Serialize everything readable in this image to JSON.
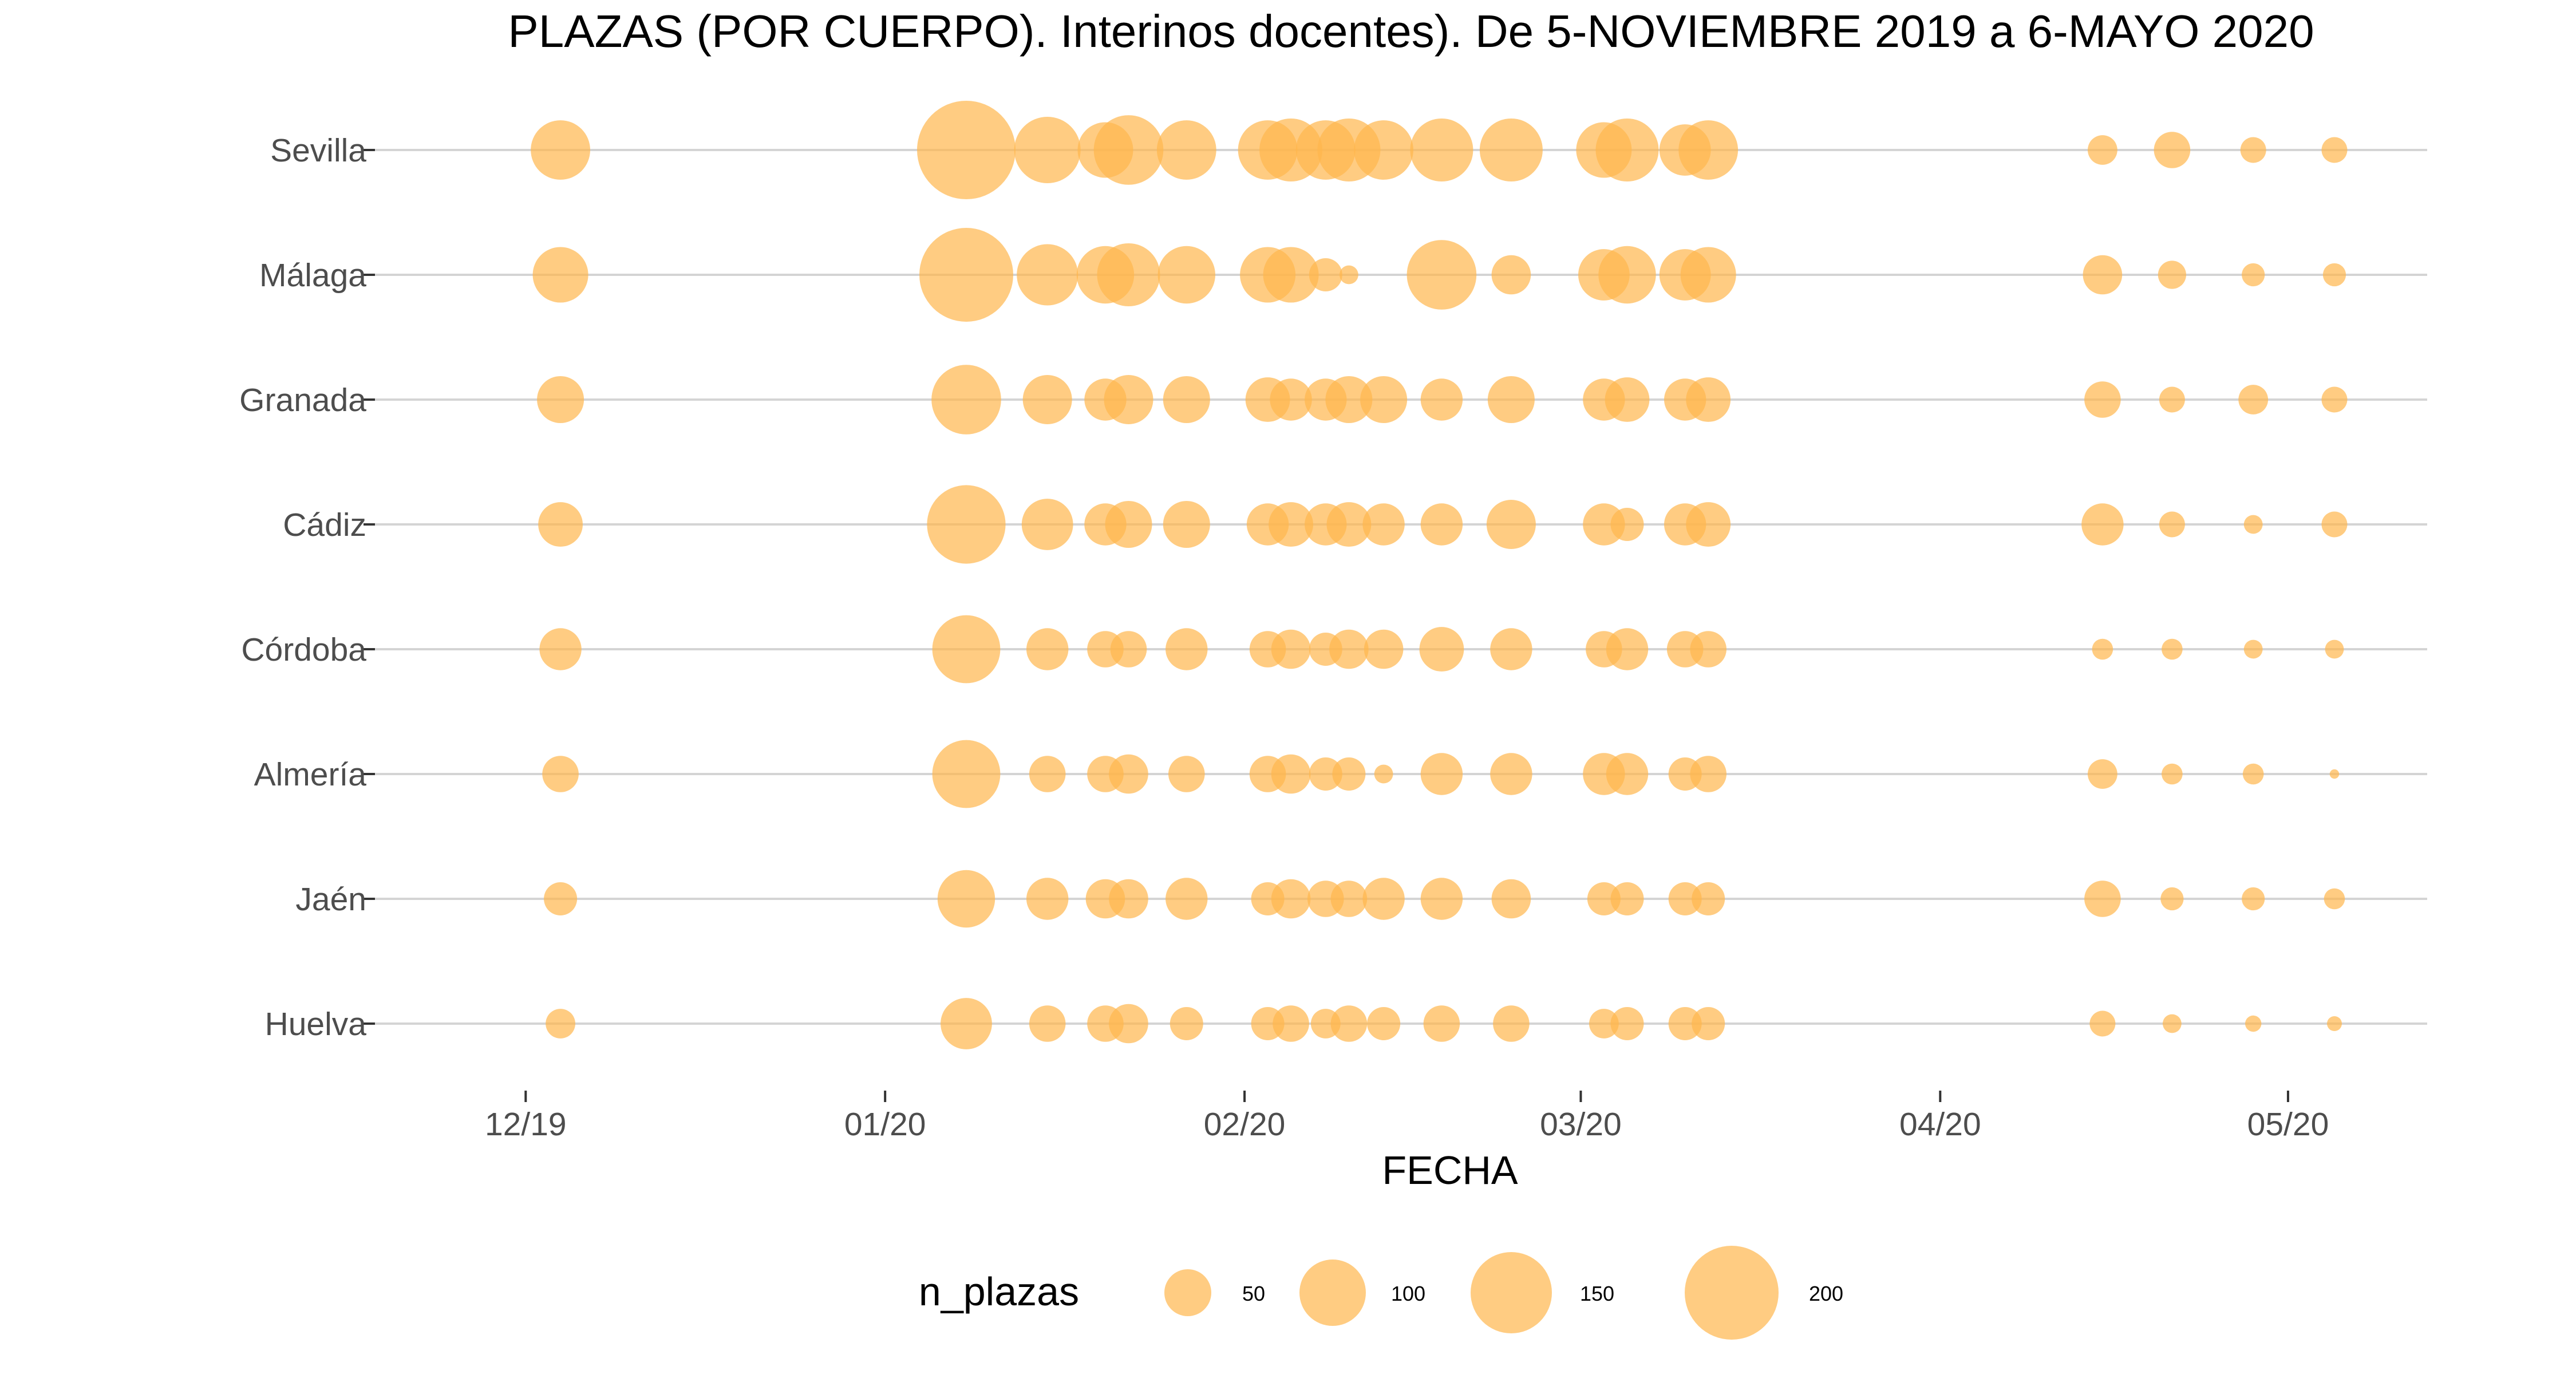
{
  "chart_data": {
    "type": "scatter",
    "title": "PLAZAS (POR CUERPO). Interinos docentes).  De 5-NOVIEMBRE 2019 a 6-MAYO 2020",
    "xlabel": "FECHA",
    "ylabel": "",
    "x_ticks": [
      {
        "date": "2019-12-01",
        "label": "12/19"
      },
      {
        "date": "2020-01-01",
        "label": "01/20"
      },
      {
        "date": "2020-02-01",
        "label": "02/20"
      },
      {
        "date": "2020-03-01",
        "label": "03/20"
      },
      {
        "date": "2020-04-01",
        "label": "04/20"
      },
      {
        "date": "2020-05-01",
        "label": "05/20"
      }
    ],
    "xlim": [
      "2019-11-18",
      "2020-05-13"
    ],
    "categories": [
      "Sevilla",
      "Málaga",
      "Granada",
      "Cádiz",
      "Córdoba",
      "Almería",
      "Jaén",
      "Huelva"
    ],
    "dates": [
      "2019-12-04",
      "2020-01-08",
      "2020-01-15",
      "2020-01-20",
      "2020-01-22",
      "2020-01-27",
      "2020-02-03",
      "2020-02-05",
      "2020-02-08",
      "2020-02-10",
      "2020-02-13",
      "2020-02-18",
      "2020-02-24",
      "2020-03-03",
      "2020-03-05",
      "2020-03-10",
      "2020-03-12",
      "2020-04-15",
      "2020-04-21",
      "2020-04-28",
      "2020-05-05"
    ],
    "series": [
      {
        "name": "Sevilla",
        "values": [
          80,
          220,
          100,
          70,
          110,
          80,
          80,
          90,
          80,
          90,
          80,
          90,
          90,
          70,
          90,
          60,
          80,
          20,
          30,
          15,
          15
        ]
      },
      {
        "name": "Málaga",
        "values": [
          70,
          200,
          85,
          75,
          90,
          75,
          70,
          70,
          25,
          8,
          null,
          110,
          35,
          60,
          75,
          60,
          70,
          35,
          18,
          12,
          12
        ]
      },
      {
        "name": "Granada",
        "values": [
          50,
          110,
          55,
          40,
          55,
          50,
          45,
          40,
          40,
          50,
          50,
          40,
          50,
          40,
          45,
          40,
          45,
          30,
          15,
          20,
          15
        ]
      },
      {
        "name": "Cádiz",
        "values": [
          45,
          140,
          60,
          40,
          50,
          50,
          40,
          45,
          40,
          45,
          40,
          40,
          55,
          40,
          25,
          40,
          45,
          40,
          15,
          8,
          15
        ]
      },
      {
        "name": "Córdoba",
        "values": [
          40,
          105,
          40,
          30,
          30,
          40,
          30,
          35,
          25,
          35,
          35,
          45,
          40,
          30,
          40,
          30,
          30,
          10,
          10,
          8,
          8
        ]
      },
      {
        "name": "Almería",
        "values": [
          30,
          105,
          30,
          30,
          35,
          30,
          30,
          35,
          25,
          25,
          8,
          40,
          40,
          40,
          40,
          25,
          30,
          20,
          10,
          10,
          2
        ]
      },
      {
        "name": "Jaén",
        "values": [
          25,
          75,
          40,
          35,
          35,
          40,
          25,
          35,
          30,
          30,
          40,
          40,
          35,
          25,
          25,
          25,
          25,
          30,
          12,
          12,
          10
        ]
      },
      {
        "name": "Huelva",
        "values": [
          20,
          60,
          30,
          30,
          35,
          25,
          25,
          30,
          20,
          30,
          25,
          30,
          30,
          20,
          25,
          25,
          25,
          15,
          8,
          6,
          5
        ]
      }
    ],
    "size_legend": {
      "title": "n_plazas",
      "values": [
        50,
        100,
        150,
        200
      ]
    },
    "point_color": "#ffb74d",
    "point_opacity": 0.7,
    "grid": true,
    "legend_position": "bottom"
  }
}
